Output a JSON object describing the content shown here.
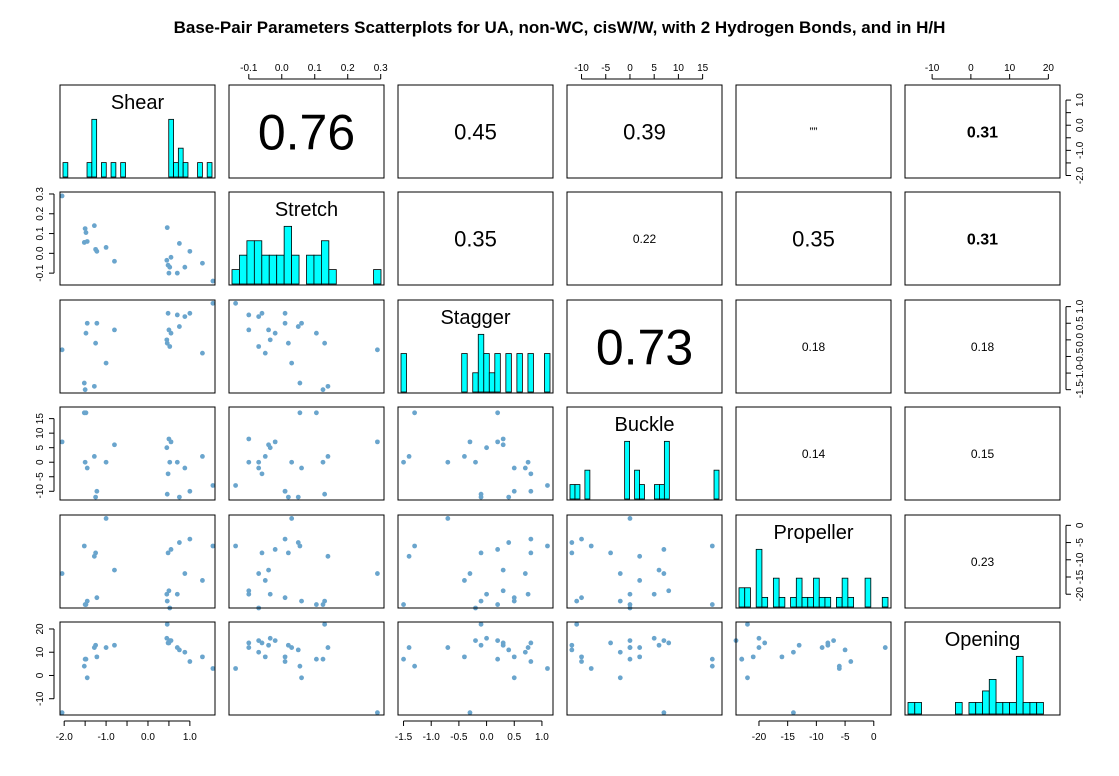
{
  "title": "Base-Pair Parameters Scatterplots for UA, non-WC, cisW/W, with 2 Hydrogen Bonds, and in H/H",
  "chart_data": {
    "type": "scatter",
    "variables": [
      {
        "name": "Shear",
        "range": [
          -2.1,
          1.6
        ],
        "ticks": [
          -2.0,
          -1.5,
          -1.0,
          -0.5,
          0.0,
          0.5,
          1.0
        ],
        "tick_labels": [
          "-2.0",
          "",
          "-1.0",
          "",
          "0.0",
          "",
          "1.0"
        ],
        "values": [
          -2.05,
          -1.52,
          -1.5,
          -1.48,
          -1.45,
          -1.28,
          -1.25,
          -1.22,
          -1.0,
          -0.8,
          0.45,
          0.46,
          0.48,
          0.5,
          0.52,
          0.55,
          0.7,
          0.75,
          0.88,
          1.0,
          1.3,
          1.55
        ],
        "hist": [
          1,
          0,
          0,
          0,
          0,
          1,
          4,
          0,
          1,
          0,
          1,
          0,
          1,
          0,
          0,
          0,
          0,
          0,
          0,
          0,
          0,
          0,
          4,
          1,
          2,
          1,
          0,
          0,
          1,
          0,
          1
        ]
      },
      {
        "name": "Stretch",
        "range": [
          -0.16,
          0.31
        ],
        "ticks": [
          -0.1,
          0.0,
          0.1,
          0.2,
          0.3
        ],
        "tick_labels": [
          "-0.1",
          "0.0",
          "0.1",
          "0.2",
          "0.3"
        ],
        "values": [
          0.29,
          0.055,
          0.125,
          0.105,
          0.06,
          0.14,
          0.02,
          0.01,
          0.03,
          -0.04,
          -0.035,
          0.13,
          -0.06,
          -0.1,
          -0.07,
          -0.02,
          -0.1,
          0.05,
          -0.07,
          0.01,
          -0.05,
          -0.14
        ],
        "hist": [
          1,
          2,
          3,
          3,
          2,
          2,
          2,
          4,
          2,
          0,
          2,
          2,
          3,
          1,
          0,
          0,
          0,
          0,
          0,
          1
        ]
      },
      {
        "name": "Stagger",
        "range": [
          -1.6,
          1.2
        ],
        "ticks": [
          -1.5,
          -1.0,
          -0.5,
          0.0,
          0.5,
          1.0
        ],
        "tick_labels": [
          "-1.5",
          "-1.0",
          "-0.5",
          "0.0",
          "0.5",
          "1.0"
        ],
        "values": [
          -0.3,
          -1.3,
          -1.5,
          0.2,
          0.5,
          -1.4,
          -0.1,
          0.5,
          -0.7,
          0.3,
          0.0,
          -0.1,
          0.8,
          0.3,
          -0.2,
          0.2,
          0.75,
          0.4,
          0.7,
          0.8,
          -0.4,
          1.1
        ],
        "hist": [
          2,
          0,
          0,
          0,
          0,
          0,
          0,
          0,
          0,
          0,
          0,
          2,
          0,
          1,
          3,
          2,
          1,
          2,
          0,
          2,
          0,
          2,
          0,
          2,
          0,
          0,
          2
        ]
      },
      {
        "name": "Buckle",
        "range": [
          -13,
          19
        ],
        "ticks": [
          -10,
          -5,
          0,
          5,
          10,
          15
        ],
        "tick_labels": [
          "-10",
          "-5",
          "0",
          "5",
          "10",
          "15"
        ],
        "values": [
          7,
          17,
          0,
          17,
          -2,
          2,
          -12,
          -10,
          0,
          6,
          5,
          -11,
          -4,
          8,
          0,
          7,
          0,
          -12,
          -2,
          -10,
          2,
          -8
        ],
        "hist": [
          1,
          1,
          0,
          2,
          0,
          0,
          0,
          0,
          0,
          0,
          0,
          4,
          0,
          2,
          1,
          0,
          0,
          1,
          1,
          4,
          0,
          0,
          0,
          0,
          0,
          0,
          0,
          0,
          0,
          2
        ]
      },
      {
        "name": "Propeller",
        "range": [
          -24,
          3
        ],
        "ticks": [
          -20,
          -15,
          -10,
          -5,
          0
        ],
        "tick_labels": [
          "-20",
          "-15",
          "-10",
          "-5",
          "0"
        ],
        "values": [
          -14,
          -6,
          -23,
          -23,
          -22,
          -9,
          -8,
          -21,
          2,
          -13,
          -20,
          -22,
          -8,
          -19,
          -24,
          -7,
          -20,
          -5,
          -14,
          -4,
          -16,
          -6
        ],
        "hist": [
          2,
          2,
          0,
          6,
          1,
          0,
          3,
          1,
          0,
          1,
          3,
          1,
          1,
          3,
          1,
          1,
          0,
          1,
          3,
          1,
          0,
          0,
          3,
          0,
          0,
          1
        ]
      },
      {
        "name": "Opening",
        "range": [
          -17,
          23
        ],
        "ticks": [
          -10,
          0,
          10,
          20
        ],
        "tick_labels": [
          "-10",
          "0",
          "10",
          "20"
        ],
        "values": [
          -16,
          4,
          7,
          7,
          -1,
          12,
          13,
          8,
          12,
          13,
          16,
          22,
          14,
          14,
          15,
          15,
          12,
          11,
          10,
          6,
          8,
          3
        ],
        "hist": [
          1,
          1,
          0,
          0,
          0,
          0,
          0,
          1,
          0,
          1,
          1,
          2,
          3,
          1,
          1,
          1,
          5,
          1,
          1,
          1,
          0,
          0
        ]
      }
    ],
    "correlations": [
      {
        "row": 0,
        "col": 1,
        "text": "0.76"
      },
      {
        "row": 0,
        "col": 2,
        "text": "0.45"
      },
      {
        "row": 0,
        "col": 3,
        "text": "0.39"
      },
      {
        "row": 0,
        "col": 4,
        "text": "””"
      },
      {
        "row": 0,
        "col": 5,
        "text": "0.31"
      },
      {
        "row": 1,
        "col": 2,
        "text": "0.35"
      },
      {
        "row": 1,
        "col": 3,
        "text": "0.22"
      },
      {
        "row": 1,
        "col": 4,
        "text": "0.35"
      },
      {
        "row": 1,
        "col": 5,
        "text": "0.31"
      },
      {
        "row": 2,
        "col": 3,
        "text": "0.73"
      },
      {
        "row": 2,
        "col": 4,
        "text": "0.18"
      },
      {
        "row": 2,
        "col": 5,
        "text": "0.18"
      },
      {
        "row": 3,
        "col": 4,
        "text": "0.14"
      },
      {
        "row": 3,
        "col": 5,
        "text": "0.15"
      },
      {
        "row": 4,
        "col": 5,
        "text": "0.23"
      }
    ],
    "point_color": "#6aa5cd",
    "hist_color": "#00ffff",
    "grid": false
  }
}
